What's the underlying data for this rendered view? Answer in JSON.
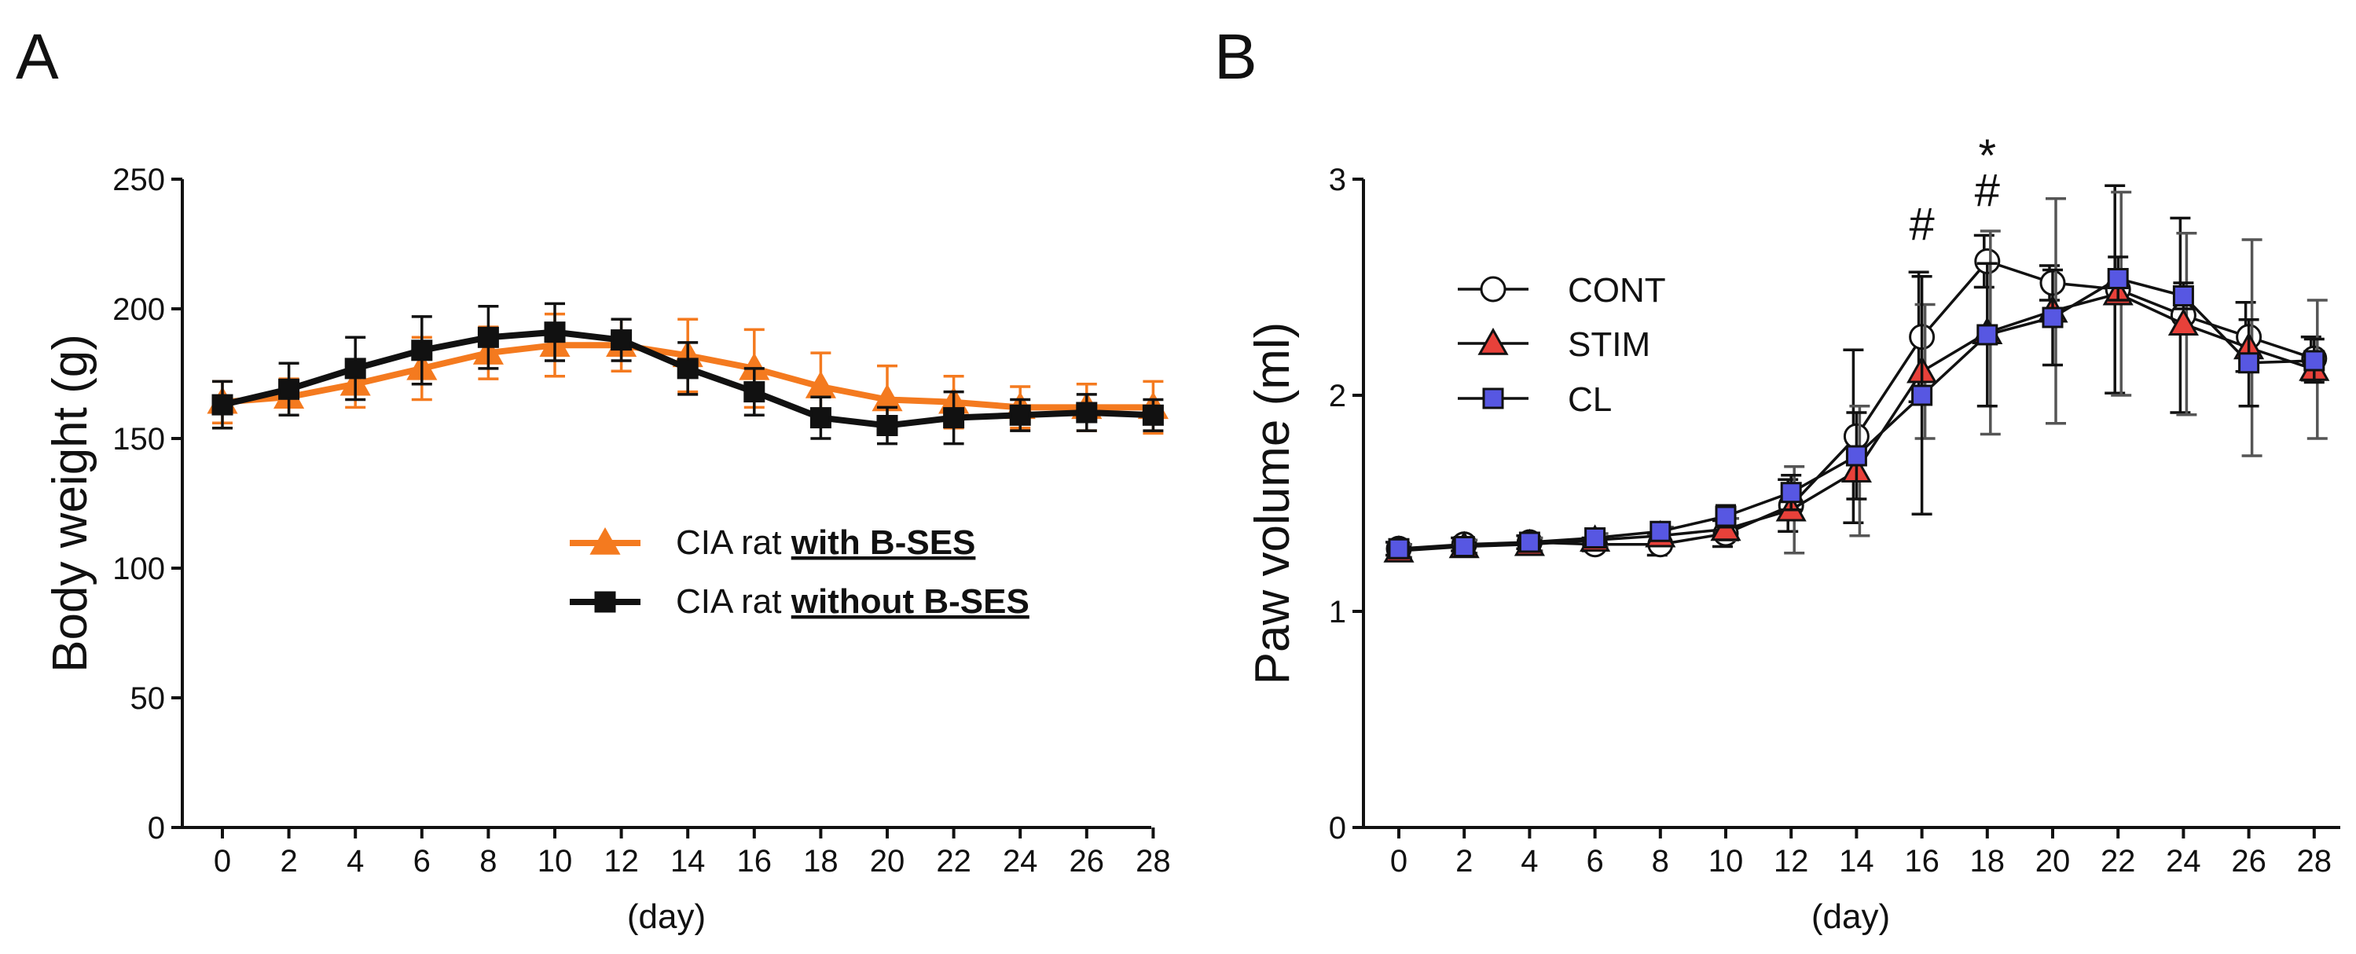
{
  "chart_data": [
    {
      "panel": "A",
      "type": "line",
      "xlabel": "(day)",
      "ylabel": "Body weight (g)",
      "ylim": [
        0,
        250
      ],
      "yticks": [
        0,
        50,
        100,
        150,
        200,
        250
      ],
      "x": [
        0,
        2,
        4,
        6,
        8,
        10,
        12,
        14,
        16,
        18,
        20,
        22,
        24,
        26,
        28
      ],
      "xtick_labels": [
        "0",
        "2",
        "4",
        "6",
        "8",
        "10",
        "12",
        "14",
        "16",
        "18",
        "20",
        "22",
        "24",
        "26",
        "28"
      ],
      "legend_position": "center-right",
      "series": [
        {
          "name": "CIA rat with B-SES",
          "legend_prefix": "CIA rat ",
          "legend_bold": "with B-SES",
          "color": "#f47a1f",
          "marker": "triangle",
          "values": [
            164,
            166,
            171,
            177,
            183,
            186,
            186,
            182,
            177,
            170,
            165,
            164,
            162,
            162,
            162
          ],
          "errors": [
            8,
            7,
            9,
            12,
            10,
            12,
            10,
            14,
            15,
            13,
            13,
            10,
            8,
            9,
            10
          ]
        },
        {
          "name": "CIA rat without B-SES",
          "legend_prefix": "CIA rat ",
          "legend_bold": "without B-SES",
          "color": "#111111",
          "marker": "square",
          "values": [
            163,
            169,
            177,
            184,
            189,
            191,
            188,
            177,
            168,
            158,
            155,
            158,
            159,
            160,
            159
          ],
          "errors": [
            9,
            10,
            12,
            13,
            12,
            11,
            8,
            10,
            9,
            8,
            7,
            10,
            6,
            7,
            6
          ]
        }
      ]
    },
    {
      "panel": "B",
      "type": "line",
      "xlabel": "(day)",
      "ylabel": "Paw volume (ml)",
      "ylim": [
        0,
        3
      ],
      "yticks": [
        0,
        1,
        2,
        3
      ],
      "x": [
        0,
        2,
        4,
        6,
        8,
        10,
        12,
        14,
        16,
        18,
        20,
        22,
        24,
        26,
        28
      ],
      "xtick_labels": [
        "0",
        "2",
        "4",
        "6",
        "8",
        "10",
        "12",
        "14",
        "16",
        "18",
        "20",
        "22",
        "24",
        "26",
        "28"
      ],
      "legend_position": "upper-left",
      "series": [
        {
          "name": "CONT",
          "color": "#ffffff",
          "marker": "circle",
          "values": [
            1.29,
            1.31,
            1.32,
            1.31,
            1.31,
            1.36,
            1.49,
            1.81,
            2.27,
            2.62,
            2.52,
            2.49,
            2.37,
            2.27,
            2.17
          ],
          "errors": [
            0.03,
            0.03,
            0.03,
            0.03,
            0.05,
            0.06,
            0.12,
            0.4,
            0.3,
            0.12,
            0.08,
            0.48,
            0.45,
            0.16,
            0.1
          ]
        },
        {
          "name": "STIM",
          "color": "#e8413a",
          "marker": "triangle",
          "values": [
            1.28,
            1.3,
            1.31,
            1.33,
            1.35,
            1.38,
            1.47,
            1.65,
            2.11,
            2.29,
            2.39,
            2.47,
            2.33,
            2.22,
            2.12
          ],
          "errors": [
            0.03,
            0.03,
            0.03,
            0.03,
            0.04,
            0.05,
            0.2,
            0.3,
            0.31,
            0.47,
            0.52,
            0.47,
            0.42,
            0.5,
            0.32
          ]
        },
        {
          "name": "CL",
          "color": "#5757e2",
          "marker": "square",
          "values": [
            1.29,
            1.3,
            1.32,
            1.34,
            1.37,
            1.44,
            1.55,
            1.72,
            2.0,
            2.28,
            2.36,
            2.54,
            2.46,
            2.15,
            2.16
          ],
          "errors": [
            0.03,
            0.03,
            0.03,
            0.03,
            0.04,
            0.05,
            0.08,
            0.2,
            0.55,
            0.33,
            0.22,
            0.1,
            0.06,
            0.2,
            0.1
          ]
        }
      ],
      "annotations": [
        {
          "text": "#",
          "x": 16
        },
        {
          "text": "#",
          "x": 18
        },
        {
          "text": "*",
          "x": 18
        }
      ]
    }
  ]
}
